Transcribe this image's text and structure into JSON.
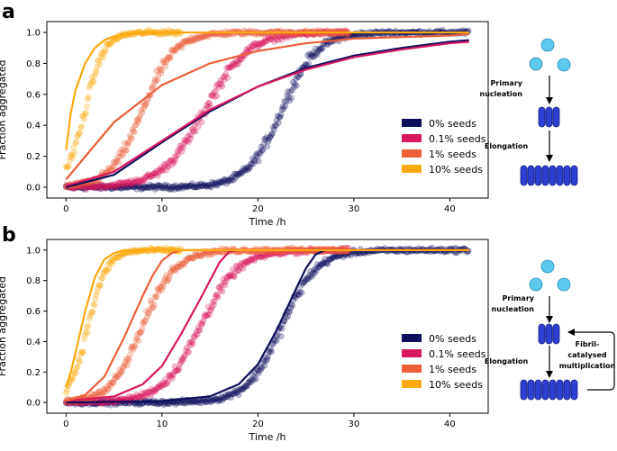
{
  "panel_labels": [
    "a",
    "b"
  ],
  "colors": {
    "s0": "#0d0f5c",
    "s01": "#d6185f",
    "s1": "#eb5f39",
    "s10": "#fba90f",
    "bead": "#5ec9ee",
    "rod": "#2f3fcf",
    "rod_edge": "#151f80"
  },
  "diagram_a": {
    "primary_label": [
      "Primary",
      "nucleation"
    ],
    "elongation_label": "Elongation"
  },
  "diagram_b": {
    "primary_label": [
      "Primary",
      "nucleation"
    ],
    "elongation_label": "Elongation",
    "multiplication_label": [
      "Fibril-",
      "catalysed",
      "multiplication"
    ]
  },
  "chart_data": [
    {
      "panel": "a",
      "type": "scatter",
      "xlabel": "Time /h",
      "ylabel": "Fraction aggregated",
      "xlim": [
        -2,
        44
      ],
      "ylim": [
        -0.07,
        1.07
      ],
      "xticks": [
        0,
        10,
        20,
        30,
        40
      ],
      "yticks": [
        0.0,
        0.2,
        0.4,
        0.6,
        0.8,
        1.0
      ],
      "legend_position": "lower-right",
      "series": [
        {
          "name": "0% seeds",
          "color_key": "s0",
          "x_end": 42,
          "points_sigmoid": {
            "midpoint": 22.5,
            "steepness": 0.55
          },
          "fit": {
            "x": [
              0,
              5,
              10,
              15,
              20,
              25,
              30,
              35,
              40,
              42
            ],
            "y": [
              0.0,
              0.08,
              0.29,
              0.49,
              0.65,
              0.77,
              0.85,
              0.9,
              0.94,
              0.95
            ]
          }
        },
        {
          "name": "0.1% seeds",
          "color_key": "s01",
          "x_end": 29.5,
          "points_sigmoid": {
            "midpoint": 14.5,
            "steepness": 0.45
          },
          "fit": {
            "x": [
              0,
              5,
              10,
              15,
              20,
              25,
              30,
              35,
              40,
              42
            ],
            "y": [
              0.01,
              0.1,
              0.3,
              0.5,
              0.65,
              0.76,
              0.84,
              0.89,
              0.93,
              0.94
            ]
          }
        },
        {
          "name": "1% seeds",
          "color_key": "s1",
          "x_end": 29.5,
          "points_sigmoid": {
            "midpoint": 8.0,
            "steepness": 0.6
          },
          "fit": {
            "x": [
              0,
              5,
              10,
              15,
              20,
              25,
              30,
              35,
              40,
              42
            ],
            "y": [
              0.05,
              0.42,
              0.66,
              0.8,
              0.88,
              0.93,
              0.96,
              0.97,
              0.98,
              0.99
            ]
          }
        },
        {
          "name": "10% seeds",
          "color_key": "s10",
          "x_end": 12,
          "points_sigmoid": {
            "midpoint": 2.0,
            "steepness": 1.0
          },
          "fit": {
            "x": [
              0,
              0.5,
              1,
              2,
              3,
              4,
              5,
              6,
              8,
              10,
              15,
              20,
              30,
              42
            ],
            "y": [
              0.24,
              0.48,
              0.63,
              0.8,
              0.9,
              0.95,
              0.975,
              0.99,
              0.995,
              1.0,
              1.0,
              1.0,
              1.0,
              1.0
            ]
          }
        }
      ]
    },
    {
      "panel": "b",
      "type": "scatter",
      "xlabel": "Time /h",
      "ylabel": "Fraction aggregated",
      "xlim": [
        -2,
        44
      ],
      "ylim": [
        -0.07,
        1.07
      ],
      "xticks": [
        0,
        10,
        20,
        30,
        40
      ],
      "yticks": [
        0.0,
        0.2,
        0.4,
        0.6,
        0.8,
        1.0
      ],
      "legend_position": "lower-right",
      "series": [
        {
          "name": "0% seeds",
          "color_key": "s0",
          "x_end": 42,
          "points_sigmoid": {
            "midpoint": 22.5,
            "steepness": 0.55
          },
          "fit": {
            "x": [
              0,
              10,
              15,
              18,
              20,
              22,
              24,
              25,
              26,
              27,
              30,
              42
            ],
            "y": [
              0.0,
              0.01,
              0.04,
              0.12,
              0.25,
              0.48,
              0.75,
              0.88,
              0.97,
              1.0,
              1.0,
              1.0
            ]
          }
        },
        {
          "name": "0.1% seeds",
          "color_key": "s01",
          "x_end": 29.5,
          "points_sigmoid": {
            "midpoint": 14.0,
            "steepness": 0.5
          },
          "fit": {
            "x": [
              0,
              5,
              8,
              10,
              12,
              14,
              15,
              16,
              17,
              18,
              25,
              42
            ],
            "y": [
              0.01,
              0.04,
              0.12,
              0.24,
              0.45,
              0.68,
              0.8,
              0.92,
              0.99,
              1.0,
              1.0,
              1.0
            ]
          }
        },
        {
          "name": "1% seeds",
          "color_key": "s1",
          "x_end": 29.5,
          "points_sigmoid": {
            "midpoint": 8.0,
            "steepness": 0.6
          },
          "fit": {
            "x": [
              0,
              2,
              4,
              6,
              7,
              8,
              9,
              10,
              11,
              12,
              15,
              42
            ],
            "y": [
              0.01,
              0.05,
              0.17,
              0.42,
              0.56,
              0.7,
              0.83,
              0.93,
              0.98,
              1.0,
              1.0,
              1.0
            ]
          }
        },
        {
          "name": "10% seeds",
          "color_key": "s10",
          "x_end": 12,
          "points_sigmoid": {
            "midpoint": 2.3,
            "steepness": 1.0
          },
          "fit": {
            "x": [
              0,
              0.5,
              1,
              2,
              3,
              4,
              5,
              6,
              8,
              15,
              42
            ],
            "y": [
              0.1,
              0.2,
              0.33,
              0.6,
              0.82,
              0.94,
              0.98,
              1.0,
              1.0,
              1.0,
              1.0
            ]
          }
        }
      ]
    }
  ]
}
